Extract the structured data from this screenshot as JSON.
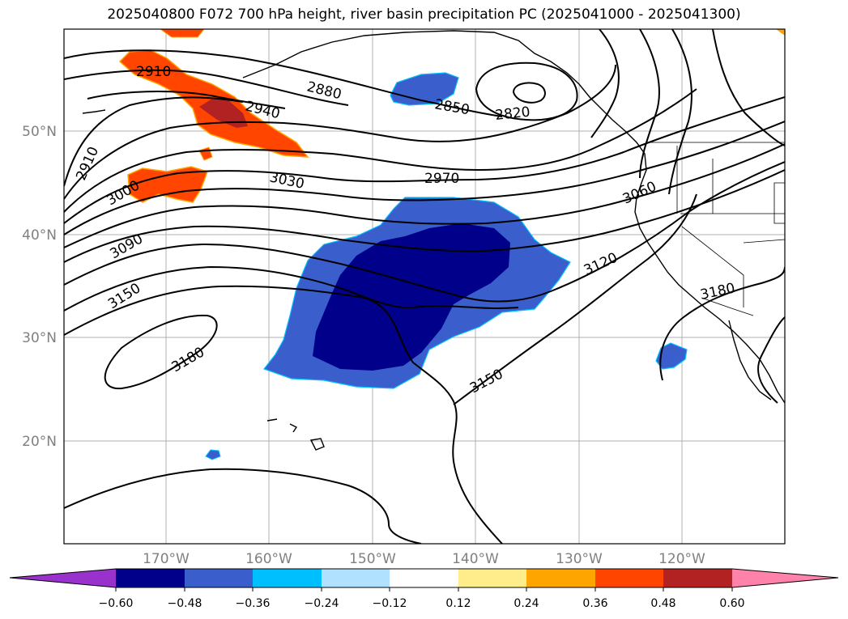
{
  "title": "2025040800 F072 700 hPa height, river basin precipitation PC (2025041000 - 2025041300)",
  "latitude_labels": [
    "50°N",
    "40°N",
    "30°N",
    "20°N"
  ],
  "longitude_labels": [
    "170°W",
    "160°W",
    "150°W",
    "140°W",
    "130°W",
    "120°W"
  ],
  "contour_labels": [
    "2910",
    "2940",
    "2880",
    "2850",
    "2820",
    "2910",
    "3000",
    "3030",
    "2970",
    "3060",
    "3090",
    "3120",
    "3150",
    "3180",
    "3180",
    "3150"
  ],
  "colorbar": {
    "ticks": [
      "−0.60",
      "−0.48",
      "−0.36",
      "−0.24",
      "−0.12",
      "0.12",
      "0.24",
      "0.36",
      "0.48",
      "0.60"
    ],
    "colors": [
      "#9932cc",
      "#00008b",
      "#3a5fcd",
      "#00bfff",
      "#b0e2ff",
      "#ffffff",
      "#ffec8b",
      "#ffa500",
      "#ff4500",
      "#b22222",
      "#ff82ab"
    ]
  }
}
